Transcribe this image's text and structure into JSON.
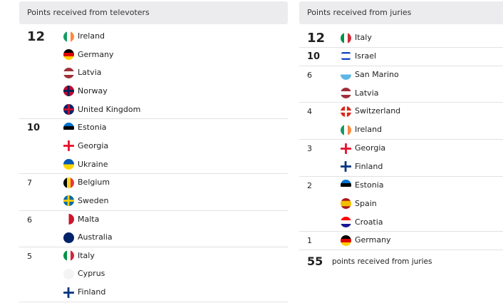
{
  "televoters": {
    "title": "Points received from televoters",
    "groups": [
      {
        "points": 12,
        "countries": [
          "Ireland",
          "Germany",
          "Latvia",
          "Norway",
          "United Kingdom"
        ]
      },
      {
        "points": 10,
        "countries": [
          "Estonia",
          "Georgia",
          "Ukraine"
        ]
      },
      {
        "points": 7,
        "countries": [
          "Belgium",
          "Sweden"
        ]
      },
      {
        "points": 6,
        "countries": [
          "Malta",
          "Australia"
        ]
      },
      {
        "points": 5,
        "countries": [
          "Italy",
          "Cyprus",
          "Finland"
        ]
      }
    ]
  },
  "juries": {
    "title": "Points received from juries",
    "groups": [
      {
        "points": 12,
        "countries": [
          "Italy"
        ]
      },
      {
        "points": 10,
        "countries": [
          "Israel"
        ]
      },
      {
        "points": 6,
        "countries": [
          "San Marino",
          "Latvia"
        ]
      },
      {
        "points": 4,
        "countries": [
          "Switzerland",
          "Ireland"
        ]
      },
      {
        "points": 3,
        "countries": [
          "Georgia",
          "Finland"
        ]
      },
      {
        "points": 2,
        "countries": [
          "Estonia",
          "Spain",
          "Croatia"
        ]
      },
      {
        "points": 1,
        "countries": [
          "Germany"
        ]
      }
    ],
    "total": {
      "points": 55,
      "label": "points received from juries"
    }
  }
}
